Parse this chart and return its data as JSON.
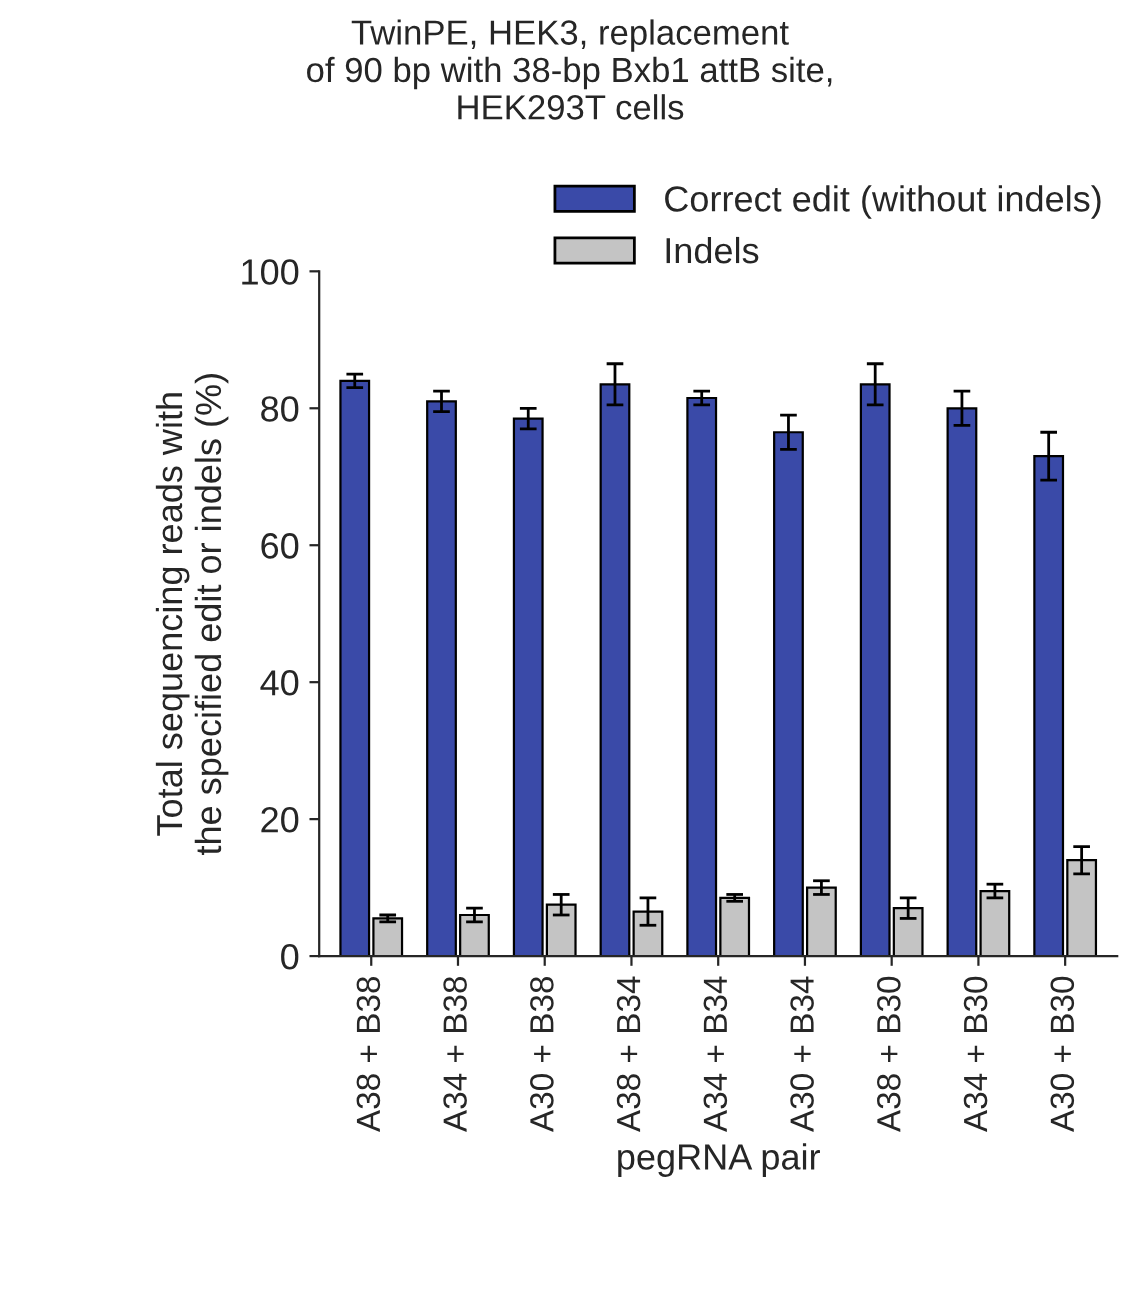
{
  "chart_data": {
    "type": "bar",
    "title": "TwinPE, HEK3, replacement\nof 90 bp with 38-bp Bxb1 attB site,\nHEK293T cells",
    "xlabel": "pegRNA pair",
    "ylabel": "Total sequencing reads with\nthe specified edit or indels (%)",
    "categories": [
      "A38 + B38",
      "A34 + B38",
      "A30 + B38",
      "A38 + B34",
      "A34 + B34",
      "A30 + B34",
      "A38 + B30",
      "A34 + B30",
      "A30 + B30"
    ],
    "series": [
      {
        "name": "Correct edit (without indels)",
        "color": "#3a4aa8",
        "values": [
          84,
          81,
          78.5,
          83.5,
          81.5,
          76.5,
          83.5,
          80,
          73
        ],
        "errors": [
          1,
          1.5,
          1.5,
          3,
          1,
          2.5,
          3,
          2.5,
          3.5
        ]
      },
      {
        "name": "Indels",
        "color": "#c4c4c4",
        "values": [
          5.5,
          6,
          7.5,
          6.5,
          8.5,
          10,
          7,
          9.5,
          14
        ],
        "errors": [
          0.5,
          1,
          1.5,
          2,
          0.5,
          1,
          1.5,
          1,
          2
        ]
      }
    ],
    "ylim": [
      0,
      100
    ],
    "yticks": [
      0,
      20,
      40,
      60,
      80,
      100
    ],
    "grid": false,
    "legend": "top right"
  }
}
